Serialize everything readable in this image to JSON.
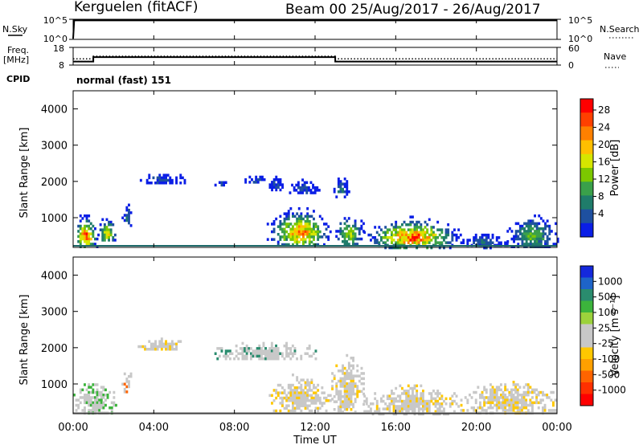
{
  "title": {
    "station": "Kerguelen (fitACF)",
    "beam_date": "Beam 00  25/Aug/2017 - 26/Aug/2017"
  },
  "panels": {
    "nsky": {
      "left_label": "N.Sky",
      "left_ticks": [
        "10^5",
        "10^0"
      ],
      "right_label": "N.Search",
      "right_ticks": [
        "10^5",
        "10^0"
      ]
    },
    "freq": {
      "left_label_1": "Freq.",
      "left_label_2": "[MHz]",
      "left_ticks": [
        "18",
        "8"
      ],
      "right_label": "Nave",
      "right_ticks": [
        "60",
        "0"
      ],
      "cpid_label": "CPID",
      "cpid_text": "normal (fast) 151"
    },
    "power": {
      "ylabel": "Slant Range [km]",
      "yticks": [
        "4000",
        "3000",
        "2000",
        "1000"
      ]
    },
    "velocity": {
      "ylabel": "Slant Range [km]",
      "yticks": [
        "4000",
        "3000",
        "2000",
        "1000"
      ]
    },
    "xlabel": "Time UT",
    "xticks": [
      "00:00",
      "04:00",
      "08:00",
      "12:00",
      "16:00",
      "20:00",
      "00:00"
    ]
  },
  "colorbars": {
    "power": {
      "label": "Power [dB]",
      "ticks": [
        "28",
        "24",
        "20",
        "16",
        "12",
        "8",
        "4"
      ],
      "colors": [
        "#ff0000",
        "#ff4000",
        "#ff8000",
        "#ffbf00",
        "#d6e600",
        "#7cc800",
        "#3aa04a",
        "#1f7c6a",
        "#1e50a0",
        "#0a1ee6"
      ]
    },
    "velocity": {
      "label": "Velocity [m s⁻¹]",
      "ticks": [
        "1000",
        "500",
        "100",
        "25",
        "-25",
        "-100",
        "-500",
        "-1000"
      ],
      "colors": [
        "#1428dc",
        "#1e64c8",
        "#2a8c6e",
        "#3cb43c",
        "#9cd23c",
        "#c8c8c8",
        "#c8c8c8",
        "#ffc800",
        "#ffa000",
        "#ff6400",
        "#ff3000",
        "#ff0000"
      ]
    }
  },
  "chart_data": [
    {
      "type": "line",
      "title": "N.Sky / N.Search",
      "xlabel": "",
      "ylabel": "N.Sky",
      "x_range_hours": [
        0,
        24
      ],
      "series": [
        {
          "name": "N.Sky",
          "x": [
            0,
            0.05,
            3,
            6,
            9,
            11.5,
            12,
            15,
            18,
            21,
            24
          ],
          "y": [
            1,
            50000,
            52000,
            51000,
            50000,
            52000,
            51000,
            50000,
            51000,
            50000,
            50000
          ]
        }
      ]
    },
    {
      "type": "line",
      "title": "Freq. / Nave",
      "xlabel": "",
      "ylabel": "Freq. [MHz]",
      "x_range_hours": [
        0,
        24
      ],
      "series": [
        {
          "name": "Freq.",
          "x": [
            0,
            1,
            1,
            13,
            13,
            24
          ],
          "y": [
            10.0,
            10.0,
            12.5,
            12.5,
            10.0,
            10.0
          ]
        },
        {
          "name": "Nave",
          "x": [
            0,
            1,
            1,
            13,
            13,
            24
          ],
          "y": [
            21,
            21,
            30,
            30,
            21,
            21
          ]
        }
      ]
    },
    {
      "type": "heatmap",
      "title": "Power",
      "xlabel": "Time UT",
      "ylabel": "Slant Range [km]",
      "xlim_hours": [
        0,
        24
      ],
      "ylim_km": [
        180,
        4500
      ],
      "zlabel": "Power [dB]",
      "zlim": [
        0,
        30
      ],
      "patches": [
        {
          "t0": 0.0,
          "t1": 1.2,
          "r0": 200,
          "r1": 1300,
          "peak": 28
        },
        {
          "t0": 1.2,
          "t1": 2.1,
          "r0": 350,
          "r1": 1200,
          "peak": 20
        },
        {
          "t0": 2.4,
          "t1": 2.9,
          "r0": 800,
          "r1": 1600,
          "peak": 8
        },
        {
          "t0": 3.2,
          "t1": 5.6,
          "r0": 1950,
          "r1": 2350,
          "peak": 6
        },
        {
          "t0": 6.9,
          "t1": 7.6,
          "r0": 1900,
          "r1": 2150,
          "peak": 6
        },
        {
          "t0": 8.5,
          "t1": 9.5,
          "r0": 1950,
          "r1": 2300,
          "peak": 6
        },
        {
          "t0": 9.5,
          "t1": 10.5,
          "r0": 1800,
          "r1": 2300,
          "peak": 6
        },
        {
          "t0": 10.6,
          "t1": 12.2,
          "r0": 1700,
          "r1": 2150,
          "peak": 6
        },
        {
          "t0": 9.6,
          "t1": 12.8,
          "r0": 250,
          "r1": 1500,
          "peak": 26
        },
        {
          "t0": 12.8,
          "t1": 13.7,
          "r0": 1600,
          "r1": 2250,
          "peak": 8
        },
        {
          "t0": 12.9,
          "t1": 14.4,
          "r0": 250,
          "r1": 1300,
          "peak": 18
        },
        {
          "t0": 14.4,
          "t1": 19.2,
          "r0": 200,
          "r1": 1200,
          "peak": 28
        },
        {
          "t0": 19.2,
          "t1": 21.5,
          "r0": 200,
          "r1": 700,
          "peak": 8
        },
        {
          "t0": 21.5,
          "t1": 24.0,
          "r0": 200,
          "r1": 1300,
          "peak": 14
        }
      ]
    },
    {
      "type": "heatmap",
      "title": "Velocity",
      "xlabel": "Time UT",
      "ylabel": "Slant Range [km]",
      "xlim_hours": [
        0,
        24
      ],
      "ylim_km": [
        180,
        4500
      ],
      "zlabel": "Velocity [m s^-1]",
      "zlim": [
        -1000,
        1000
      ],
      "patches": [
        {
          "t0": 0.0,
          "t1": 2.1,
          "r0": 200,
          "r1": 1300,
          "dominant": "-25..25",
          "accent": "25..100"
        },
        {
          "t0": 2.4,
          "t1": 2.9,
          "r0": 800,
          "r1": 1600,
          "dominant": "-25..25",
          "accent": "-500..-100"
        },
        {
          "t0": 3.2,
          "t1": 5.6,
          "r0": 1950,
          "r1": 2350,
          "dominant": "-25..25",
          "accent": "-100..-25"
        },
        {
          "t0": 6.9,
          "t1": 12.2,
          "r0": 1700,
          "r1": 2300,
          "dominant": "-25..25",
          "accent": "100..500"
        },
        {
          "t0": 9.6,
          "t1": 12.8,
          "r0": 250,
          "r1": 1500,
          "dominant": "-25..25",
          "accent": "-100..-25"
        },
        {
          "t0": 12.8,
          "t1": 14.4,
          "r0": 250,
          "r1": 2250,
          "dominant": "-25..25",
          "accent": "-100..-25"
        },
        {
          "t0": 14.4,
          "t1": 19.2,
          "r0": 200,
          "r1": 1200,
          "dominant": "-25..25",
          "accent": "-100..-25"
        },
        {
          "t0": 19.2,
          "t1": 24.0,
          "r0": 200,
          "r1": 1300,
          "dominant": "-25..25",
          "accent": "-100..-25"
        }
      ]
    }
  ]
}
